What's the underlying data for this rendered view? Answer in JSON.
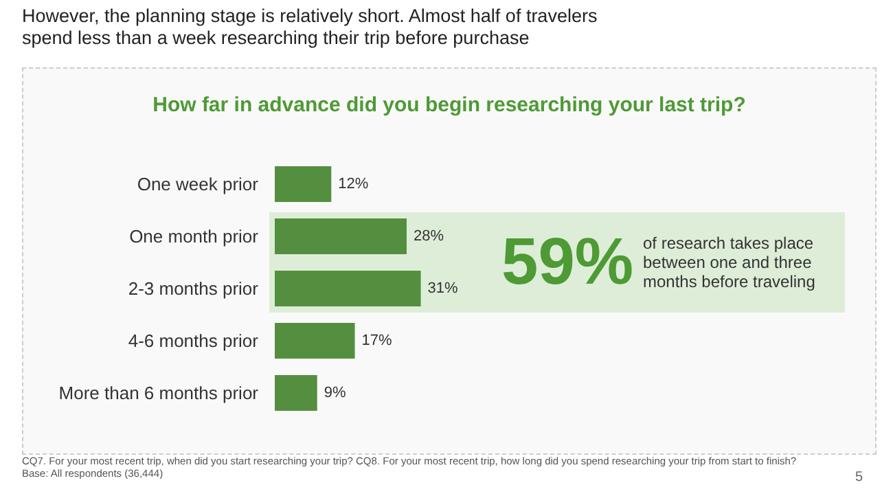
{
  "chart_data": {
    "type": "bar",
    "orientation": "horizontal",
    "title": "However, the planning stage is relatively short. Almost half of travelers spend less than a week researching their trip before purchase",
    "subtitle": "How far in advance did you begin researching your last trip?",
    "categories": [
      "One week prior",
      "One month prior",
      "2-3 months prior",
      "4-6 months prior",
      "More than 6 months prior"
    ],
    "values": [
      12,
      28,
      31,
      17,
      9
    ],
    "annotations": [
      "59%",
      "of research takes place between one and three months before traveling",
      "CQ7. For your most recent trip, when did you start researching your trip? CQ8. For your most recent trip, how long did you spend researching your trip from start to finish?",
      "Base: All respondents (36,444)",
      "5"
    ],
    "value_labels": [
      "12%",
      "28%",
      "31%",
      "17%",
      "9%"
    ],
    "color": "#548f3f",
    "bands": [
      {
        "axis": "y",
        "from": "One month prior",
        "to": "2-3 months prior",
        "color": "#deedd8"
      }
    ]
  }
}
